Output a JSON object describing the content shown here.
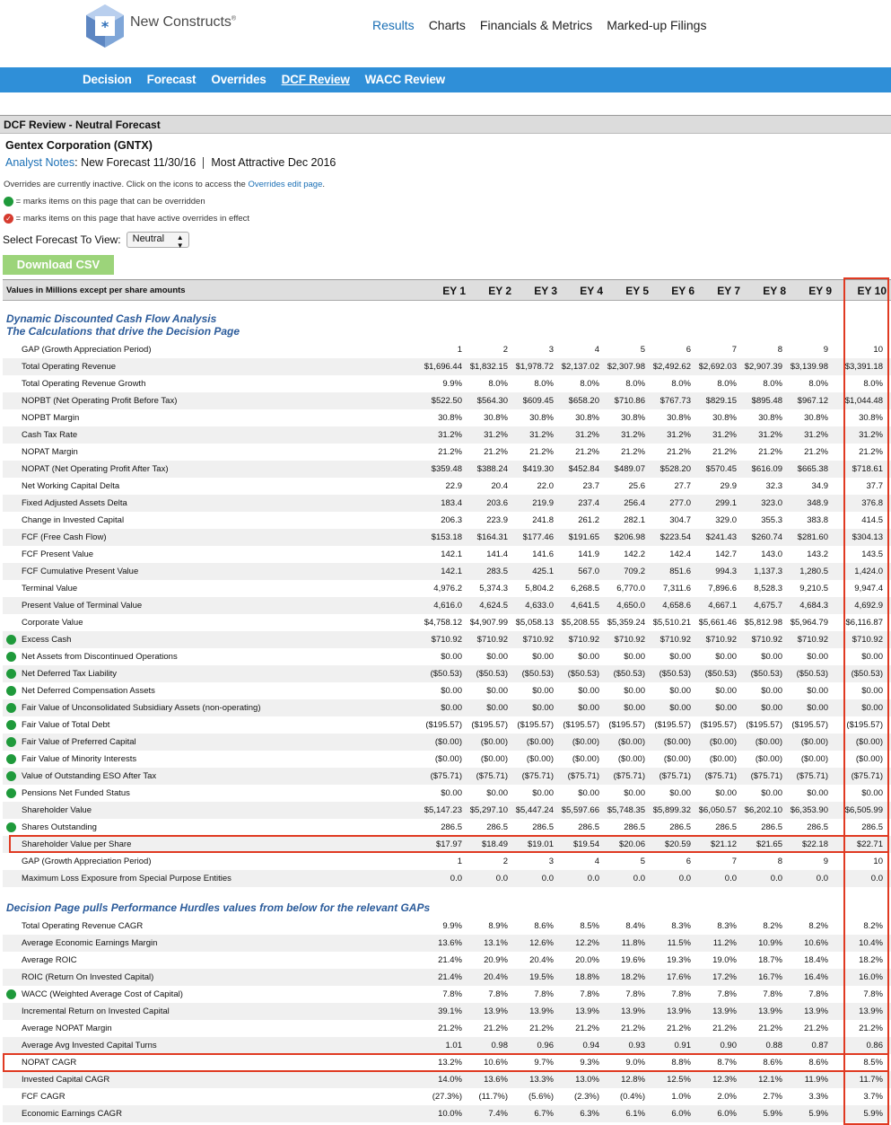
{
  "header": {
    "logo_text": "New Constructs",
    "logo_mark": "®",
    "nav": [
      "Results",
      "Charts",
      "Financials & Metrics",
      "Marked-up Filings"
    ],
    "active_nav": "Results"
  },
  "subnav": {
    "items": [
      "Decision",
      "Forecast",
      "Overrides",
      "DCF Review",
      "WACC Review"
    ],
    "active": "DCF Review"
  },
  "page": {
    "heading": "DCF Review - Neutral Forecast",
    "company": "Gentex Corporation (GNTX)",
    "analyst_notes_link": "Analyst Notes",
    "notes_text": ": New Forecast 11/30/16",
    "rating": "Most Attractive Dec 2016",
    "info_text": "Overrides are currently inactive. Click on the icons to access the ",
    "info_link": "Overrides edit page",
    "info_end": ".",
    "legend_green": "= marks items on this page that can be overridden",
    "legend_red": "= marks items on this page that have active overrides in effect",
    "select_label": "Select Forecast To View:",
    "select_value": "Neutral",
    "csv_button": "Download CSV"
  },
  "table": {
    "header_label": "Values in Millions except per share amounts",
    "columns": [
      "EY 1",
      "EY 2",
      "EY 3",
      "EY 4",
      "EY 5",
      "EY 6",
      "EY 7",
      "EY 8",
      "EY 9",
      "EY 10"
    ],
    "section1_line1": "Dynamic Discounted Cash Flow Analysis",
    "section1_line2": "The Calculations that drive the Decision Page",
    "section2": "Decision Page pulls Performance Hurdles values from below for the relevant GAPs",
    "rows1": [
      {
        "name": "GAP (Growth Appreciation Period)",
        "dot": false,
        "v": [
          "1",
          "2",
          "3",
          "4",
          "5",
          "6",
          "7",
          "8",
          "9",
          "10"
        ]
      },
      {
        "name": "Total Operating Revenue",
        "dot": false,
        "v": [
          "$1,696.44",
          "$1,832.15",
          "$1,978.72",
          "$2,137.02",
          "$2,307.98",
          "$2,492.62",
          "$2,692.03",
          "$2,907.39",
          "$3,139.98",
          "$3,391.18"
        ]
      },
      {
        "name": "Total Operating Revenue Growth",
        "dot": false,
        "v": [
          "9.9%",
          "8.0%",
          "8.0%",
          "8.0%",
          "8.0%",
          "8.0%",
          "8.0%",
          "8.0%",
          "8.0%",
          "8.0%"
        ]
      },
      {
        "name": "NOPBT (Net Operating Profit Before Tax)",
        "dot": false,
        "v": [
          "$522.50",
          "$564.30",
          "$609.45",
          "$658.20",
          "$710.86",
          "$767.73",
          "$829.15",
          "$895.48",
          "$967.12",
          "$1,044.48"
        ]
      },
      {
        "name": "NOPBT Margin",
        "dot": false,
        "v": [
          "30.8%",
          "30.8%",
          "30.8%",
          "30.8%",
          "30.8%",
          "30.8%",
          "30.8%",
          "30.8%",
          "30.8%",
          "30.8%"
        ]
      },
      {
        "name": "Cash Tax Rate",
        "dot": false,
        "v": [
          "31.2%",
          "31.2%",
          "31.2%",
          "31.2%",
          "31.2%",
          "31.2%",
          "31.2%",
          "31.2%",
          "31.2%",
          "31.2%"
        ]
      },
      {
        "name": "NOPAT Margin",
        "dot": false,
        "v": [
          "21.2%",
          "21.2%",
          "21.2%",
          "21.2%",
          "21.2%",
          "21.2%",
          "21.2%",
          "21.2%",
          "21.2%",
          "21.2%"
        ]
      },
      {
        "name": "NOPAT (Net Operating Profit After Tax)",
        "dot": false,
        "v": [
          "$359.48",
          "$388.24",
          "$419.30",
          "$452.84",
          "$489.07",
          "$528.20",
          "$570.45",
          "$616.09",
          "$665.38",
          "$718.61"
        ]
      },
      {
        "name": "Net Working Capital Delta",
        "dot": false,
        "v": [
          "22.9",
          "20.4",
          "22.0",
          "23.7",
          "25.6",
          "27.7",
          "29.9",
          "32.3",
          "34.9",
          "37.7"
        ]
      },
      {
        "name": "Fixed Adjusted Assets Delta",
        "dot": false,
        "v": [
          "183.4",
          "203.6",
          "219.9",
          "237.4",
          "256.4",
          "277.0",
          "299.1",
          "323.0",
          "348.9",
          "376.8"
        ]
      },
      {
        "name": "Change in Invested Capital",
        "dot": false,
        "v": [
          "206.3",
          "223.9",
          "241.8",
          "261.2",
          "282.1",
          "304.7",
          "329.0",
          "355.3",
          "383.8",
          "414.5"
        ]
      },
      {
        "name": "FCF (Free Cash Flow)",
        "dot": false,
        "v": [
          "$153.18",
          "$164.31",
          "$177.46",
          "$191.65",
          "$206.98",
          "$223.54",
          "$241.43",
          "$260.74",
          "$281.60",
          "$304.13"
        ]
      },
      {
        "name": "FCF Present Value",
        "dot": false,
        "v": [
          "142.1",
          "141.4",
          "141.6",
          "141.9",
          "142.2",
          "142.4",
          "142.7",
          "143.0",
          "143.2",
          "143.5"
        ]
      },
      {
        "name": "FCF Cumulative Present Value",
        "dot": false,
        "v": [
          "142.1",
          "283.5",
          "425.1",
          "567.0",
          "709.2",
          "851.6",
          "994.3",
          "1,137.3",
          "1,280.5",
          "1,424.0"
        ]
      },
      {
        "name": "Terminal Value",
        "dot": false,
        "v": [
          "4,976.2",
          "5,374.3",
          "5,804.2",
          "6,268.5",
          "6,770.0",
          "7,311.6",
          "7,896.6",
          "8,528.3",
          "9,210.5",
          "9,947.4"
        ]
      },
      {
        "name": "Present Value of Terminal Value",
        "dot": false,
        "v": [
          "4,616.0",
          "4,624.5",
          "4,633.0",
          "4,641.5",
          "4,650.0",
          "4,658.6",
          "4,667.1",
          "4,675.7",
          "4,684.3",
          "4,692.9"
        ]
      },
      {
        "name": "Corporate Value",
        "dot": false,
        "v": [
          "$4,758.12",
          "$4,907.99",
          "$5,058.13",
          "$5,208.55",
          "$5,359.24",
          "$5,510.21",
          "$5,661.46",
          "$5,812.98",
          "$5,964.79",
          "$6,116.87"
        ]
      },
      {
        "name": "Excess Cash",
        "dot": true,
        "v": [
          "$710.92",
          "$710.92",
          "$710.92",
          "$710.92",
          "$710.92",
          "$710.92",
          "$710.92",
          "$710.92",
          "$710.92",
          "$710.92"
        ]
      },
      {
        "name": "Net Assets from Discontinued Operations",
        "dot": true,
        "v": [
          "$0.00",
          "$0.00",
          "$0.00",
          "$0.00",
          "$0.00",
          "$0.00",
          "$0.00",
          "$0.00",
          "$0.00",
          "$0.00"
        ]
      },
      {
        "name": "Net Deferred Tax Liability",
        "dot": true,
        "v": [
          "($50.53)",
          "($50.53)",
          "($50.53)",
          "($50.53)",
          "($50.53)",
          "($50.53)",
          "($50.53)",
          "($50.53)",
          "($50.53)",
          "($50.53)"
        ]
      },
      {
        "name": "Net Deferred Compensation Assets",
        "dot": true,
        "v": [
          "$0.00",
          "$0.00",
          "$0.00",
          "$0.00",
          "$0.00",
          "$0.00",
          "$0.00",
          "$0.00",
          "$0.00",
          "$0.00"
        ]
      },
      {
        "name": "Fair Value of Unconsolidated Subsidiary Assets (non-operating)",
        "dot": true,
        "v": [
          "$0.00",
          "$0.00",
          "$0.00",
          "$0.00",
          "$0.00",
          "$0.00",
          "$0.00",
          "$0.00",
          "$0.00",
          "$0.00"
        ]
      },
      {
        "name": "Fair Value of Total Debt",
        "dot": true,
        "v": [
          "($195.57)",
          "($195.57)",
          "($195.57)",
          "($195.57)",
          "($195.57)",
          "($195.57)",
          "($195.57)",
          "($195.57)",
          "($195.57)",
          "($195.57)"
        ]
      },
      {
        "name": "Fair Value of Preferred Capital",
        "dot": true,
        "v": [
          "($0.00)",
          "($0.00)",
          "($0.00)",
          "($0.00)",
          "($0.00)",
          "($0.00)",
          "($0.00)",
          "($0.00)",
          "($0.00)",
          "($0.00)"
        ]
      },
      {
        "name": "Fair Value of Minority Interests",
        "dot": true,
        "v": [
          "($0.00)",
          "($0.00)",
          "($0.00)",
          "($0.00)",
          "($0.00)",
          "($0.00)",
          "($0.00)",
          "($0.00)",
          "($0.00)",
          "($0.00)"
        ]
      },
      {
        "name": "Value of Outstanding ESO After Tax",
        "dot": true,
        "v": [
          "($75.71)",
          "($75.71)",
          "($75.71)",
          "($75.71)",
          "($75.71)",
          "($75.71)",
          "($75.71)",
          "($75.71)",
          "($75.71)",
          "($75.71)"
        ]
      },
      {
        "name": "Pensions Net Funded Status",
        "dot": true,
        "v": [
          "$0.00",
          "$0.00",
          "$0.00",
          "$0.00",
          "$0.00",
          "$0.00",
          "$0.00",
          "$0.00",
          "$0.00",
          "$0.00"
        ]
      },
      {
        "name": "Shareholder Value",
        "dot": false,
        "v": [
          "$5,147.23",
          "$5,297.10",
          "$5,447.24",
          "$5,597.66",
          "$5,748.35",
          "$5,899.32",
          "$6,050.57",
          "$6,202.10",
          "$6,353.90",
          "$6,505.99"
        ]
      },
      {
        "name": "Shares Outstanding",
        "dot": true,
        "v": [
          "286.5",
          "286.5",
          "286.5",
          "286.5",
          "286.5",
          "286.5",
          "286.5",
          "286.5",
          "286.5",
          "286.5"
        ]
      },
      {
        "name": "Shareholder Value per Share",
        "dot": false,
        "v": [
          "$17.97",
          "$18.49",
          "$19.01",
          "$19.54",
          "$20.06",
          "$20.59",
          "$21.12",
          "$21.65",
          "$22.18",
          "$22.71"
        ]
      },
      {
        "name": "GAP (Growth Appreciation Period)",
        "dot": false,
        "v": [
          "1",
          "2",
          "3",
          "4",
          "5",
          "6",
          "7",
          "8",
          "9",
          "10"
        ]
      },
      {
        "name": "Maximum Loss Exposure from Special Purpose Entities",
        "dot": false,
        "v": [
          "0.0",
          "0.0",
          "0.0",
          "0.0",
          "0.0",
          "0.0",
          "0.0",
          "0.0",
          "0.0",
          "0.0"
        ]
      }
    ],
    "rows2": [
      {
        "name": "Total Operating Revenue CAGR",
        "dot": false,
        "v": [
          "9.9%",
          "8.9%",
          "8.6%",
          "8.5%",
          "8.4%",
          "8.3%",
          "8.3%",
          "8.2%",
          "8.2%",
          "8.2%"
        ]
      },
      {
        "name": "Average Economic Earnings Margin",
        "dot": false,
        "v": [
          "13.6%",
          "13.1%",
          "12.6%",
          "12.2%",
          "11.8%",
          "11.5%",
          "11.2%",
          "10.9%",
          "10.6%",
          "10.4%"
        ]
      },
      {
        "name": "Average ROIC",
        "dot": false,
        "v": [
          "21.4%",
          "20.9%",
          "20.4%",
          "20.0%",
          "19.6%",
          "19.3%",
          "19.0%",
          "18.7%",
          "18.4%",
          "18.2%"
        ]
      },
      {
        "name": "ROIC (Return On Invested Capital)",
        "dot": false,
        "v": [
          "21.4%",
          "20.4%",
          "19.5%",
          "18.8%",
          "18.2%",
          "17.6%",
          "17.2%",
          "16.7%",
          "16.4%",
          "16.0%"
        ]
      },
      {
        "name": "WACC (Weighted Average Cost of Capital)",
        "dot": true,
        "v": [
          "7.8%",
          "7.8%",
          "7.8%",
          "7.8%",
          "7.8%",
          "7.8%",
          "7.8%",
          "7.8%",
          "7.8%",
          "7.8%"
        ]
      },
      {
        "name": "Incremental Return on Invested Capital",
        "dot": false,
        "v": [
          "39.1%",
          "13.9%",
          "13.9%",
          "13.9%",
          "13.9%",
          "13.9%",
          "13.9%",
          "13.9%",
          "13.9%",
          "13.9%"
        ]
      },
      {
        "name": "Average NOPAT Margin",
        "dot": false,
        "v": [
          "21.2%",
          "21.2%",
          "21.2%",
          "21.2%",
          "21.2%",
          "21.2%",
          "21.2%",
          "21.2%",
          "21.2%",
          "21.2%"
        ]
      },
      {
        "name": "Average Avg Invested Capital Turns",
        "dot": false,
        "v": [
          "1.01",
          "0.98",
          "0.96",
          "0.94",
          "0.93",
          "0.91",
          "0.90",
          "0.88",
          "0.87",
          "0.86"
        ]
      },
      {
        "name": "NOPAT CAGR",
        "dot": false,
        "v": [
          "13.2%",
          "10.6%",
          "9.7%",
          "9.3%",
          "9.0%",
          "8.8%",
          "8.7%",
          "8.6%",
          "8.6%",
          "8.5%"
        ]
      },
      {
        "name": "Invested Capital CAGR",
        "dot": false,
        "v": [
          "14.0%",
          "13.6%",
          "13.3%",
          "13.0%",
          "12.8%",
          "12.5%",
          "12.3%",
          "12.1%",
          "11.9%",
          "11.7%"
        ]
      },
      {
        "name": "FCF CAGR",
        "dot": false,
        "v": [
          "(27.3%)",
          "(11.7%)",
          "(5.6%)",
          "(2.3%)",
          "(0.4%)",
          "1.0%",
          "2.0%",
          "2.7%",
          "3.3%",
          "3.7%"
        ]
      },
      {
        "name": "Economic Earnings CAGR",
        "dot": false,
        "v": [
          "10.0%",
          "7.4%",
          "6.7%",
          "6.3%",
          "6.1%",
          "6.0%",
          "6.0%",
          "5.9%",
          "5.9%",
          "5.9%"
        ]
      }
    ]
  }
}
